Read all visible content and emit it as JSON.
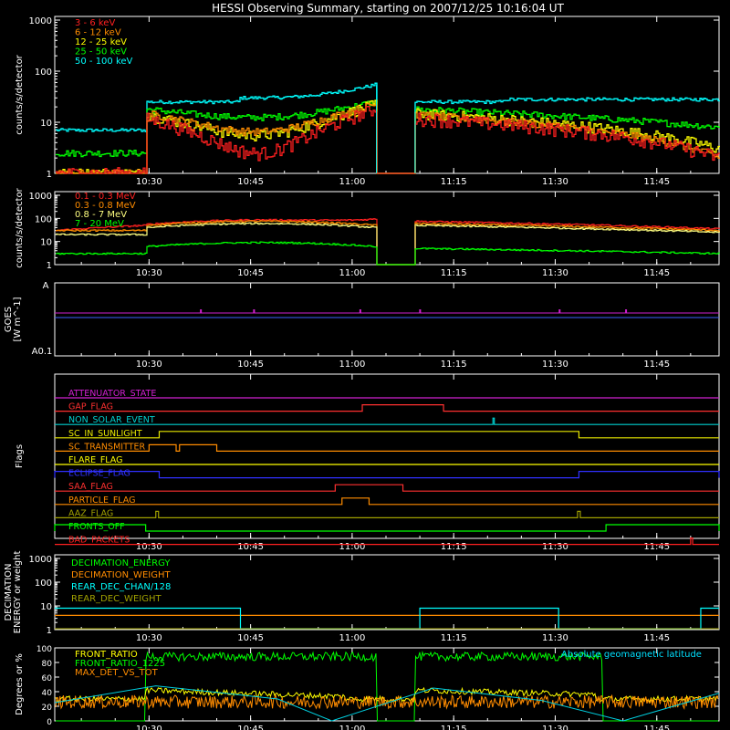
{
  "title": "HESSI Observing Summary, starting on 2007/12/25 10:16:04 UT",
  "time_ticks": [
    "10:30",
    "10:45",
    "11:00",
    "11:15",
    "11:30",
    "11:45"
  ],
  "chart_data": [
    {
      "type": "line",
      "id": "lightcurve-low",
      "ylabel": "counts/s/detector",
      "ylog": true,
      "ylim": [
        1,
        1000
      ],
      "yticks": [
        "1",
        "10",
        "100",
        "1000"
      ],
      "series": [
        {
          "name": "3 - 6 keV",
          "color": "#ff2020",
          "pattern": "ltcL"
        },
        {
          "name": "6 - 12 keV",
          "color": "#ff8c00",
          "pattern": "ltcO"
        },
        {
          "name": "12 - 25 keV",
          "color": "#ffff00",
          "pattern": "ltcY"
        },
        {
          "name": "25 - 50 keV",
          "color": "#00ff00",
          "pattern": "ltcG"
        },
        {
          "name": "50 - 100 keV",
          "color": "#00ffff",
          "pattern": "ltcC"
        }
      ]
    },
    {
      "type": "line",
      "id": "lightcurve-high",
      "ylabel": "counts/s/detector",
      "ylog": true,
      "ylim": [
        1,
        1000
      ],
      "yticks": [
        "1",
        "10",
        "100",
        "1000"
      ],
      "series": [
        {
          "name": "0.1 - 0.3 MeV",
          "color": "#ff2020",
          "pattern": "hiR"
        },
        {
          "name": "0.3 - 0.8 MeV",
          "color": "#ff8c00",
          "pattern": "hiO"
        },
        {
          "name": "0.8 - 7 MeV",
          "color": "#ffff80",
          "pattern": "hiY"
        },
        {
          "name": "7 - 20 MeV",
          "color": "#00ff00",
          "pattern": "hiG"
        }
      ]
    },
    {
      "type": "line",
      "id": "goes",
      "ylabel": "GOES [W m⁻¹]",
      "ylabel_line1": "GOES",
      "ylabel_line2": "[W m^-1]",
      "yticks": [
        "A",
        "A0.1"
      ]
    },
    {
      "type": "line",
      "id": "flags",
      "ylabel": "Flags",
      "series": [
        {
          "name": "ATTENUATOR_STATE",
          "color": "#d020d0"
        },
        {
          "name": "GAP_FLAG",
          "color": "#ff3030"
        },
        {
          "name": "NON_SOLAR_EVENT",
          "color": "#00d0d0"
        },
        {
          "name": "SC_IN_SUNLIGHT",
          "color": "#e8e800"
        },
        {
          "name": "SC_TRANSMITTER",
          "color": "#ff8c00"
        },
        {
          "name": "FLARE_FLAG",
          "color": "#ffff00"
        },
        {
          "name": "ECLIPSE_FLAG",
          "color": "#3030ff"
        },
        {
          "name": "SAA_FLAG",
          "color": "#ff3030"
        },
        {
          "name": "PARTICLE_FLAG",
          "color": "#ff8c00"
        },
        {
          "name": "AAZ_FLAG",
          "color": "#a0a000"
        },
        {
          "name": "FRONTS_OFF",
          "color": "#00ff00"
        },
        {
          "name": "BAD_PACKETS",
          "color": "#ff2020"
        }
      ]
    },
    {
      "type": "line",
      "id": "decimation",
      "ylabel": "DECIMATION ENERGY or weight",
      "ylabel_line1": "DECIMATION",
      "ylabel_line2": "ENERGY or weight",
      "ylog": true,
      "yticks": [
        "1",
        "10",
        "100",
        "1000"
      ],
      "series": [
        {
          "name": "DECIMATION_ENERGY",
          "color": "#00ff00"
        },
        {
          "name": "DECIMATION_WEIGHT",
          "color": "#ff8c00"
        },
        {
          "name": "REAR_DEC_CHAN/128",
          "color": "#00ffff"
        },
        {
          "name": "REAR_DEC_WEIGHT",
          "color": "#a0a000"
        }
      ]
    },
    {
      "type": "line",
      "id": "ratios",
      "ylabel": "Degrees or %",
      "ylim": [
        0,
        100
      ],
      "yticks": [
        "0",
        "20",
        "40",
        "60",
        "80",
        "100"
      ],
      "annotation": "Absolute geomagnetic latitude",
      "series": [
        {
          "name": "FRONT_RATIO",
          "color": "#ffff00"
        },
        {
          "name": "FRONT_RATIO_1225",
          "color": "#00ff00"
        },
        {
          "name": "MAX_DET_VS_TOT",
          "color": "#ff8c00"
        }
      ]
    }
  ]
}
